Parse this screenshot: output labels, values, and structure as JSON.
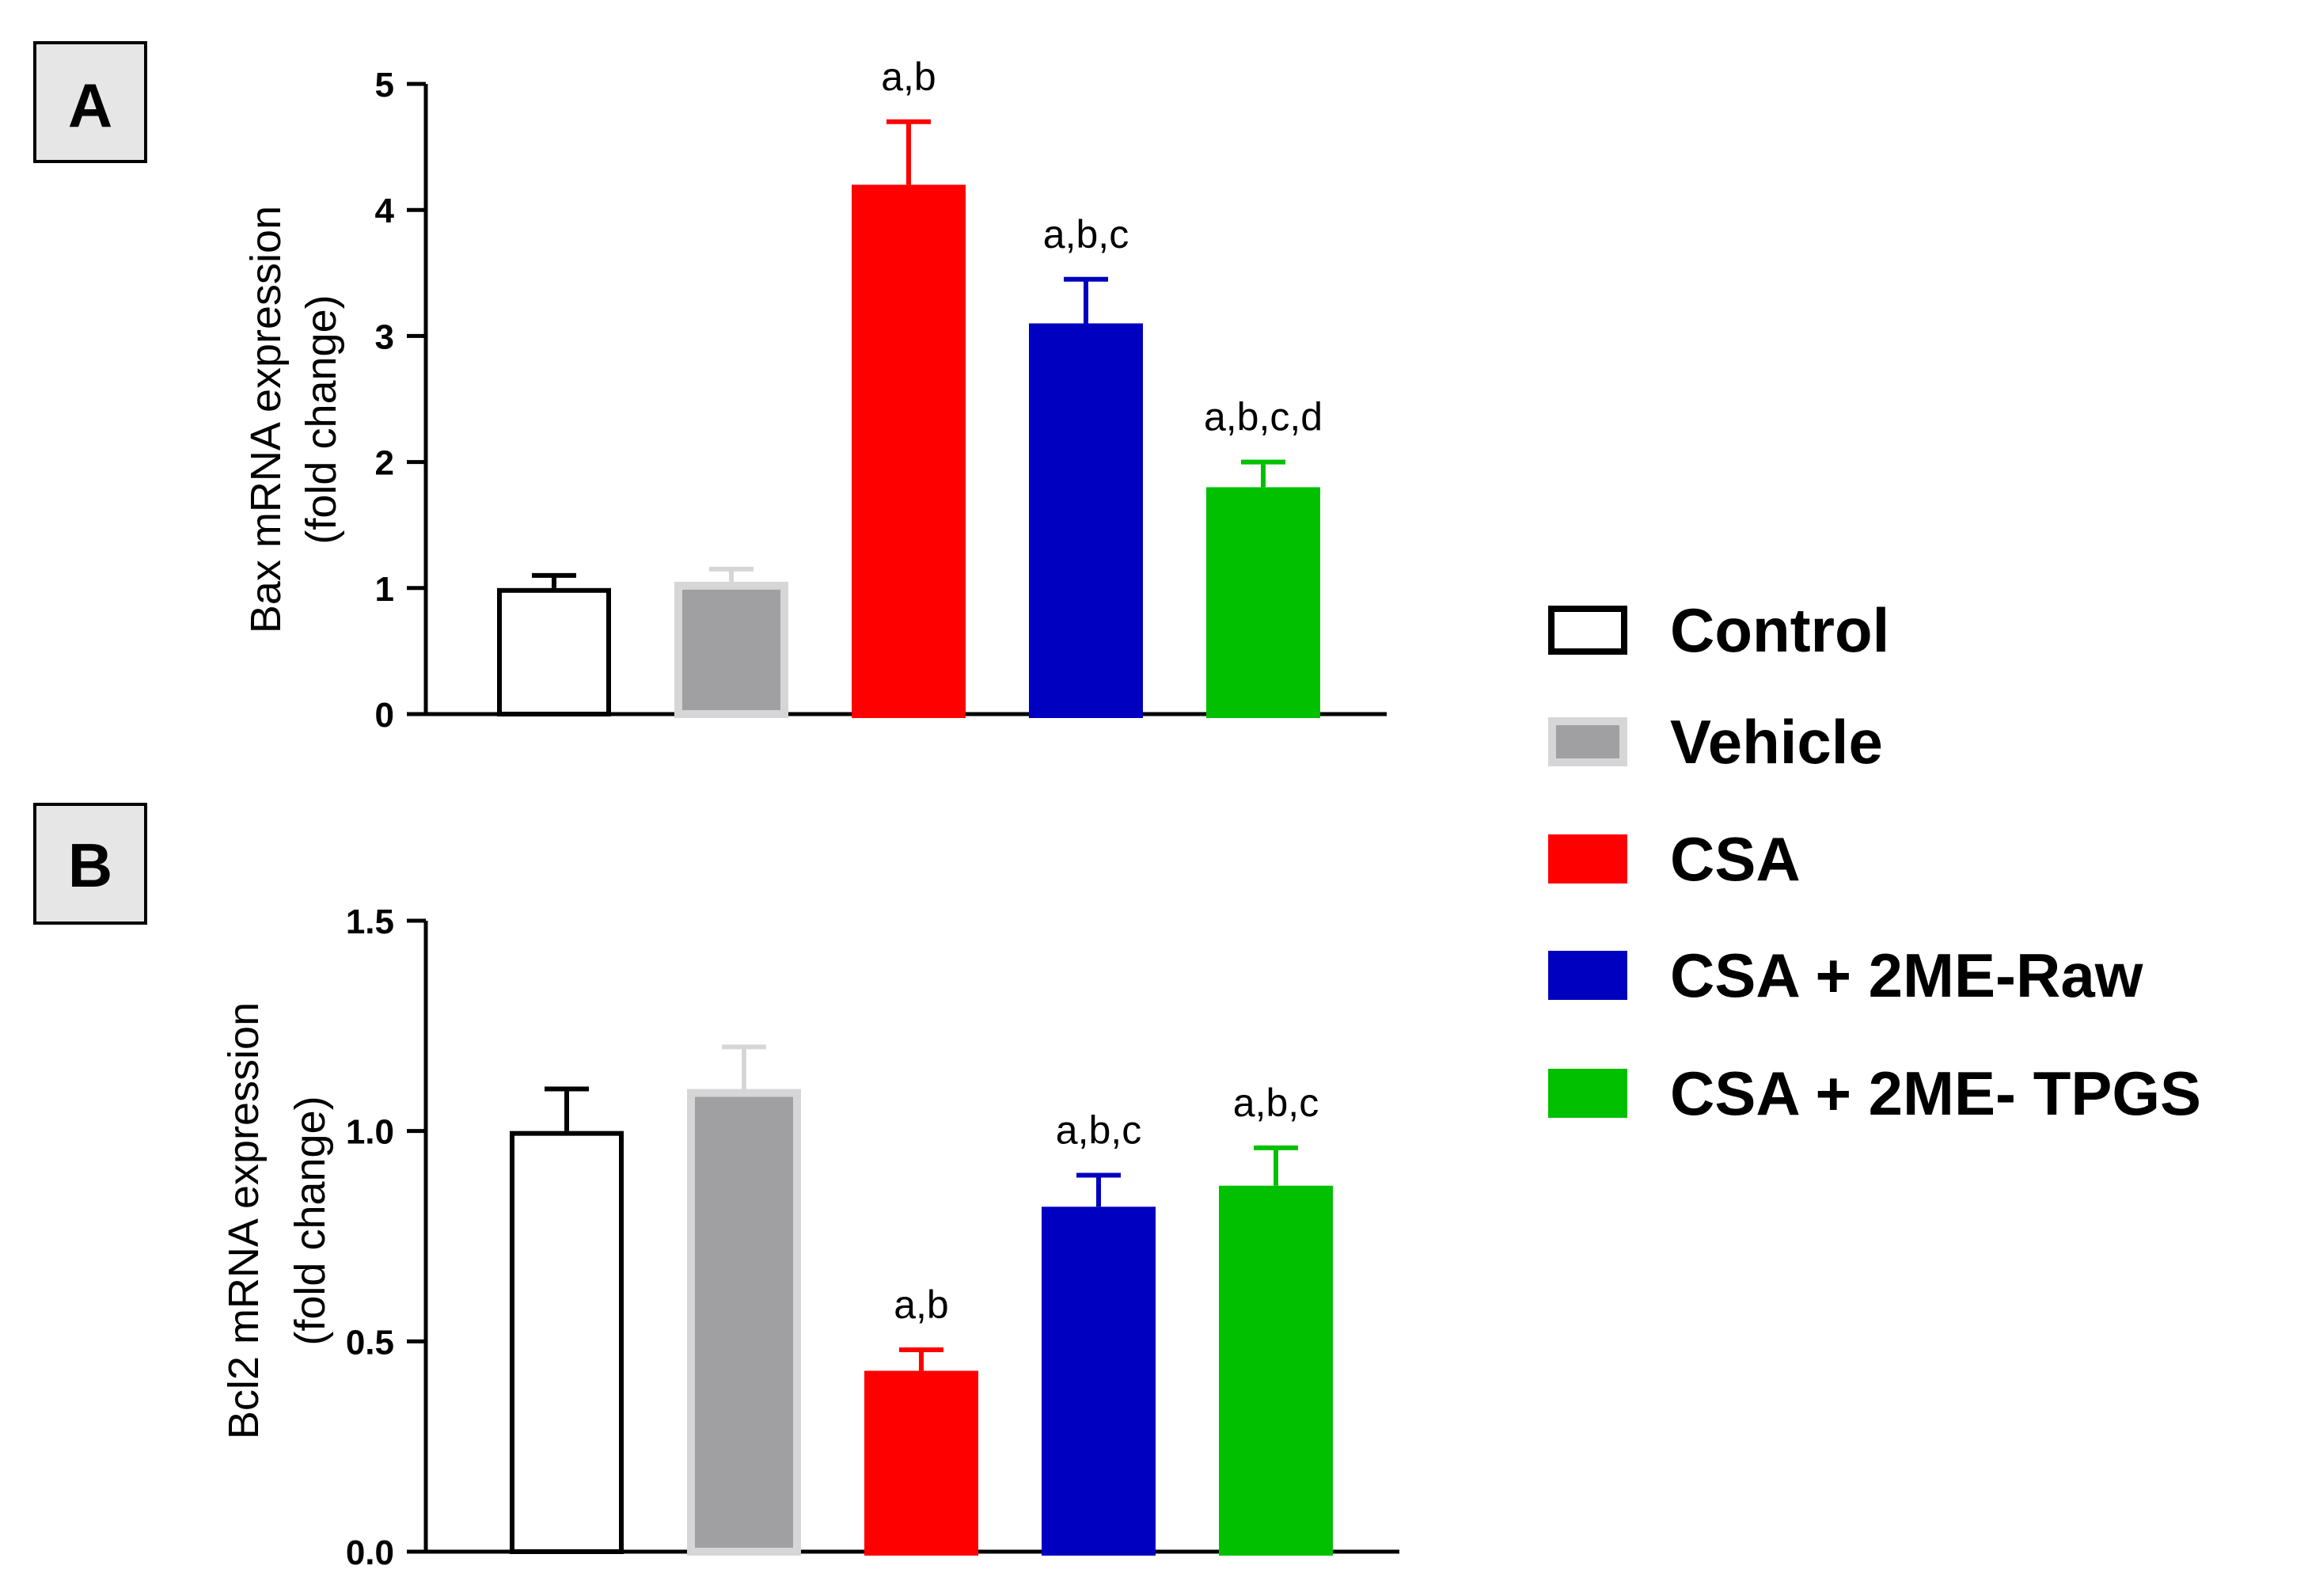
{
  "legend": [
    {
      "name": "Control",
      "fill": "#ffffff",
      "stroke": "#000000"
    },
    {
      "name": "Vehicle",
      "fill": "#a0a0a2",
      "stroke": "#d6d6d6"
    },
    {
      "name": "CSA",
      "fill": "#ff0000",
      "stroke": "#ff0000"
    },
    {
      "name": "CSA + 2ME-Raw",
      "fill": "#0000c0",
      "stroke": "#0000c0"
    },
    {
      "name": "CSA + 2ME- TPGS",
      "fill": "#00c000",
      "stroke": "#00c000"
    }
  ],
  "chart_data": [
    {
      "type": "bar",
      "panel": "A",
      "categories": [
        "Control",
        "Vehicle",
        "CSA",
        "CSA + 2ME-Raw",
        "CSA + 2ME- TPGS"
      ],
      "values": [
        1.0,
        1.05,
        4.2,
        3.1,
        1.8
      ],
      "errors": [
        0.1,
        0.1,
        0.5,
        0.35,
        0.2
      ],
      "annotations": [
        "",
        "",
        "a,b",
        "a,b,c",
        "a,b,c,d"
      ],
      "title": "",
      "xlabel": "",
      "ylabel": [
        "Bax mRNA expression",
        "(fold change)"
      ],
      "ylim": [
        0,
        5
      ],
      "yticks": [
        0,
        1,
        2,
        3,
        4,
        5
      ],
      "ytick_labels": [
        "0",
        "1",
        "2",
        "3",
        "4",
        "5"
      ],
      "grid": false
    },
    {
      "type": "bar",
      "panel": "B",
      "categories": [
        "Control",
        "Vehicle",
        "CSA",
        "CSA + 2ME-Raw",
        "CSA + 2ME- TPGS"
      ],
      "values": [
        1.0,
        1.1,
        0.43,
        0.82,
        0.87
      ],
      "errors": [
        0.1,
        0.1,
        0.05,
        0.075,
        0.09
      ],
      "annotations": [
        "",
        "",
        "a,b",
        "a,b,c",
        "a,b,c"
      ],
      "title": "",
      "xlabel": "",
      "ylabel": [
        "Bcl2 mRNA expression",
        "(fold change)"
      ],
      "ylim": [
        0,
        1.5
      ],
      "yticks": [
        0,
        0.5,
        1.0,
        1.5
      ],
      "ytick_labels": [
        "0.0",
        "0.5",
        "1.0",
        "1.5"
      ],
      "grid": false
    }
  ]
}
